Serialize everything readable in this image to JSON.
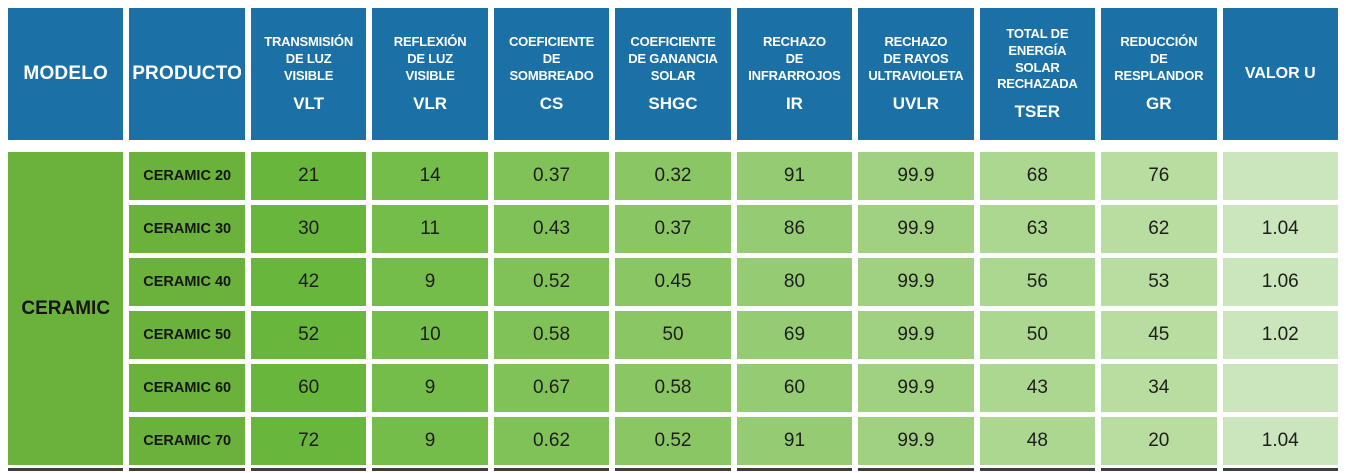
{
  "table": {
    "header": {
      "modelo": "MODELO",
      "producto": "PRODUCTO",
      "valor_u": "VALOR U",
      "metrics": [
        {
          "name": "TRANSMISIÓN\nDE LUZ\nVISIBLE",
          "acronym": "VLT"
        },
        {
          "name": "REFLEXIÓN\nDE LUZ\nVISIBLE",
          "acronym": "VLR"
        },
        {
          "name": "COEFICIENTE\nDE\nSOMBREADO",
          "acronym": "CS"
        },
        {
          "name": "COEFICIENTE\nDE GANANCIA\nSOLAR",
          "acronym": "SHGC"
        },
        {
          "name": "RECHAZO\nDE\nINFRARROJOS",
          "acronym": "IR"
        },
        {
          "name": "RECHAZO\nDE RAYOS\nULTRAVIOLETA",
          "acronym": "UVLR"
        },
        {
          "name": "TOTAL DE\nENERGÍA\nSOLAR\nRECHAZADA",
          "acronym": "TSER"
        },
        {
          "name": "REDUCCIÓN\nDE\nRESPLANDOR",
          "acronym": "GR"
        }
      ]
    },
    "model_group": "CERAMIC",
    "rows": [
      {
        "producto": "CERAMIC 20",
        "values": [
          "21",
          "14",
          "0.37",
          "0.32",
          "91",
          "99.9",
          "68",
          "76",
          ""
        ]
      },
      {
        "producto": "CERAMIC 30",
        "values": [
          "30",
          "11",
          "0.43",
          "0.37",
          "86",
          "99.9",
          "63",
          "62",
          "1.04"
        ]
      },
      {
        "producto": "CERAMIC 40",
        "values": [
          "42",
          "9",
          "0.52",
          "0.45",
          "80",
          "99.9",
          "56",
          "53",
          "1.06"
        ]
      },
      {
        "producto": "CERAMIC 50",
        "values": [
          "52",
          "10",
          "0.58",
          "50",
          "69",
          "99.9",
          "50",
          "45",
          "1.02"
        ]
      },
      {
        "producto": "CERAMIC 60",
        "values": [
          "60",
          "9",
          "0.67",
          "0.58",
          "60",
          "99.9",
          "43",
          "34",
          ""
        ]
      },
      {
        "producto": "CERAMIC 70",
        "values": [
          "72",
          "9",
          "0.62",
          "0.52",
          "91",
          "99.9",
          "48",
          "20",
          "1.04"
        ]
      }
    ],
    "colors": {
      "header_bg": "#1b71a6",
      "header_text": "#ffffff",
      "group_green": "#6ab23c",
      "value_columns": [
        "#68b63b",
        "#75bd4b",
        "#80c258",
        "#8ac764",
        "#95cc73",
        "#a0d181",
        "#acd791",
        "#b8dda1",
        "#cbe6bc"
      ],
      "body_text": "#1e1e1c",
      "bottom_strip": "#3d3d3c",
      "background": "#ffffff"
    }
  },
  "chart_data": {
    "type": "table",
    "columns": [
      "MODELO",
      "PRODUCTO",
      "TRANSMISIÓN DE LUZ VISIBLE (VLT)",
      "REFLEXIÓN DE LUZ VISIBLE (VLR)",
      "COEFICIENTE DE SOMBREADO (CS)",
      "COEFICIENTE DE GANANCIA SOLAR (SHGC)",
      "RECHAZO DE INFRARROJOS (IR)",
      "RECHAZO DE RAYOS ULTRAVIOLETA (UVLR)",
      "TOTAL DE ENERGÍA SOLAR RECHAZADA (TSER)",
      "REDUCCIÓN DE RESPLANDOR (GR)",
      "VALOR U"
    ],
    "rows": [
      [
        "CERAMIC",
        "CERAMIC 20",
        21,
        14,
        0.37,
        0.32,
        91,
        99.9,
        68,
        76,
        null
      ],
      [
        "CERAMIC",
        "CERAMIC 30",
        30,
        11,
        0.43,
        0.37,
        86,
        99.9,
        63,
        62,
        1.04
      ],
      [
        "CERAMIC",
        "CERAMIC 40",
        42,
        9,
        0.52,
        0.45,
        80,
        99.9,
        56,
        53,
        1.06
      ],
      [
        "CERAMIC",
        "CERAMIC 50",
        52,
        10,
        0.58,
        50,
        69,
        99.9,
        50,
        45,
        1.02
      ],
      [
        "CERAMIC",
        "CERAMIC 60",
        60,
        9,
        0.67,
        0.58,
        60,
        99.9,
        43,
        34,
        null
      ],
      [
        "CERAMIC",
        "CERAMIC 70",
        72,
        9,
        0.62,
        0.52,
        91,
        99.9,
        48,
        20,
        1.04
      ]
    ],
    "layout": "matrix table, blue header row, green body cells lightening left-to-right, MODELO cell spans all 6 rows"
  }
}
